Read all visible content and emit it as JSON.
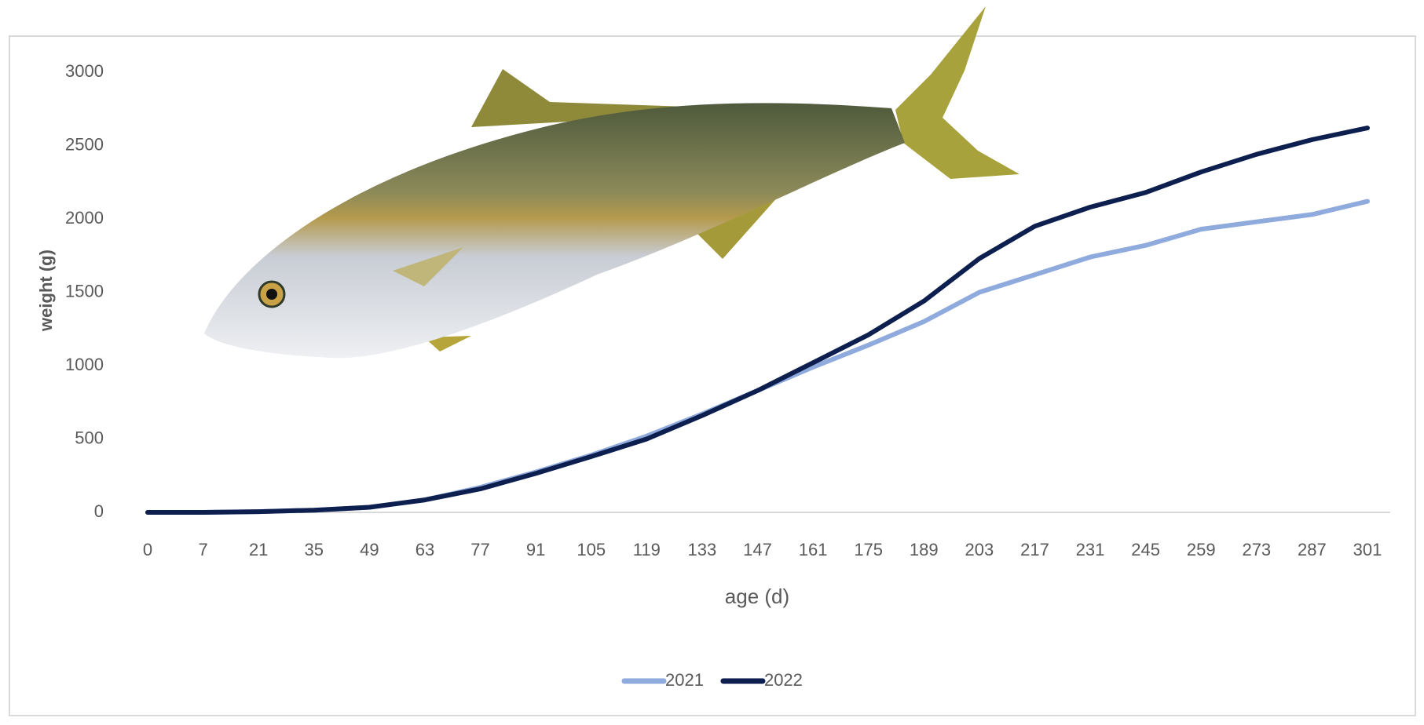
{
  "chart_data": {
    "type": "line",
    "x_label": "age (d)",
    "y_label": "weight (g)",
    "categories": [
      "0",
      "7",
      "21",
      "35",
      "49",
      "63",
      "77",
      "91",
      "105",
      "119",
      "133",
      "147",
      "161",
      "175",
      "189",
      "203",
      "217",
      "231",
      "245",
      "259",
      "273",
      "287",
      "301"
    ],
    "series": [
      {
        "name": "2021",
        "color": "#8faadc",
        "values": [
          0,
          0,
          5,
          15,
          35,
          85,
          170,
          275,
          390,
          520,
          670,
          830,
          990,
          1140,
          1300,
          1500,
          1620,
          1740,
          1820,
          1930,
          1980,
          2030,
          2120
        ]
      },
      {
        "name": "2022",
        "color": "#0c1f4f",
        "values": [
          0,
          0,
          5,
          15,
          35,
          85,
          160,
          265,
          380,
          500,
          660,
          830,
          1020,
          1210,
          1440,
          1730,
          1950,
          2080,
          2180,
          2320,
          2440,
          2540,
          2620
        ]
      }
    ],
    "ylim": [
      0,
      3000
    ],
    "yticks": [
      0,
      500,
      1000,
      1500,
      2000,
      2500,
      3000
    ],
    "grid": false,
    "legend": "bottom"
  }
}
